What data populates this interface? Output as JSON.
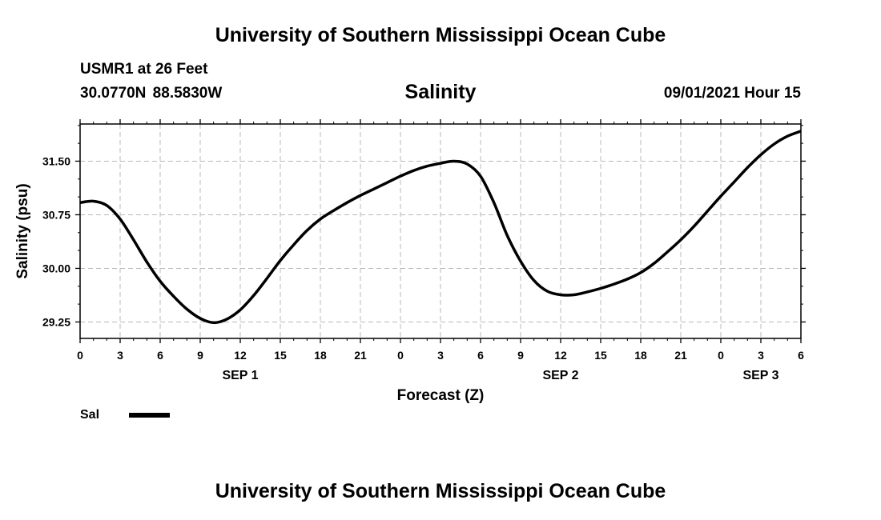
{
  "header": {
    "top_title": "University of Southern Mississippi Ocean Cube",
    "station": "USMR1 at 26 Feet",
    "coords": "30.0770N  88.5830W",
    "variable_title": "Salinity",
    "timestamp": "09/01/2021 Hour 15"
  },
  "footer": {
    "bottom_title": "University of Southern Mississippi Ocean Cube"
  },
  "legend": {
    "label": "Sal",
    "color": "#000000"
  },
  "chart_data": {
    "type": "line",
    "title": "Salinity",
    "xlabel": "Forecast (Z)",
    "ylabel": "Salinity (psu)",
    "xlim": [
      0,
      54
    ],
    "ylim": [
      29.02,
      32.02
    ],
    "x_ticks": [
      0,
      3,
      6,
      9,
      12,
      15,
      18,
      21,
      24,
      27,
      30,
      33,
      36,
      39,
      42,
      45,
      48,
      51,
      54
    ],
    "x_tick_labels": [
      "0",
      "3",
      "6",
      "9",
      "12",
      "15",
      "18",
      "21",
      "0",
      "3",
      "6",
      "9",
      "12",
      "15",
      "18",
      "21",
      "0",
      "3",
      "6"
    ],
    "date_labels": [
      {
        "x": 12,
        "label": "SEP 1"
      },
      {
        "x": 36,
        "label": "SEP 2"
      },
      {
        "x": 51,
        "label": "SEP 3"
      }
    ],
    "y_ticks": [
      29.25,
      30.0,
      30.75,
      31.5
    ],
    "y_tick_labels": [
      "29.25",
      "30.00",
      "30.75",
      "31.50"
    ],
    "grid": true,
    "series": [
      {
        "name": "Sal",
        "color": "#000000",
        "x": [
          0,
          1,
          2,
          3,
          4,
          5,
          6,
          7,
          8,
          9,
          10,
          11,
          12,
          13,
          14,
          15,
          16,
          17,
          18,
          19,
          20,
          21,
          22,
          23,
          24,
          25,
          26,
          27,
          28,
          29,
          30,
          31,
          32,
          33,
          34,
          35,
          36,
          37,
          38,
          39,
          40,
          41,
          42,
          43,
          44,
          45,
          46,
          47,
          48,
          49,
          50,
          51,
          52,
          53,
          54
        ],
        "y": [
          30.92,
          30.94,
          30.88,
          30.69,
          30.4,
          30.09,
          29.82,
          29.61,
          29.43,
          29.3,
          29.24,
          29.29,
          29.42,
          29.62,
          29.86,
          30.11,
          30.33,
          30.53,
          30.69,
          30.81,
          30.92,
          31.02,
          31.11,
          31.2,
          31.29,
          31.37,
          31.43,
          31.47,
          31.5,
          31.46,
          31.29,
          30.92,
          30.46,
          30.1,
          29.83,
          29.68,
          29.63,
          29.63,
          29.67,
          29.72,
          29.78,
          29.85,
          29.94,
          30.07,
          30.23,
          30.4,
          30.59,
          30.8,
          31.01,
          31.21,
          31.41,
          31.59,
          31.74,
          31.85,
          31.92
        ]
      }
    ]
  }
}
